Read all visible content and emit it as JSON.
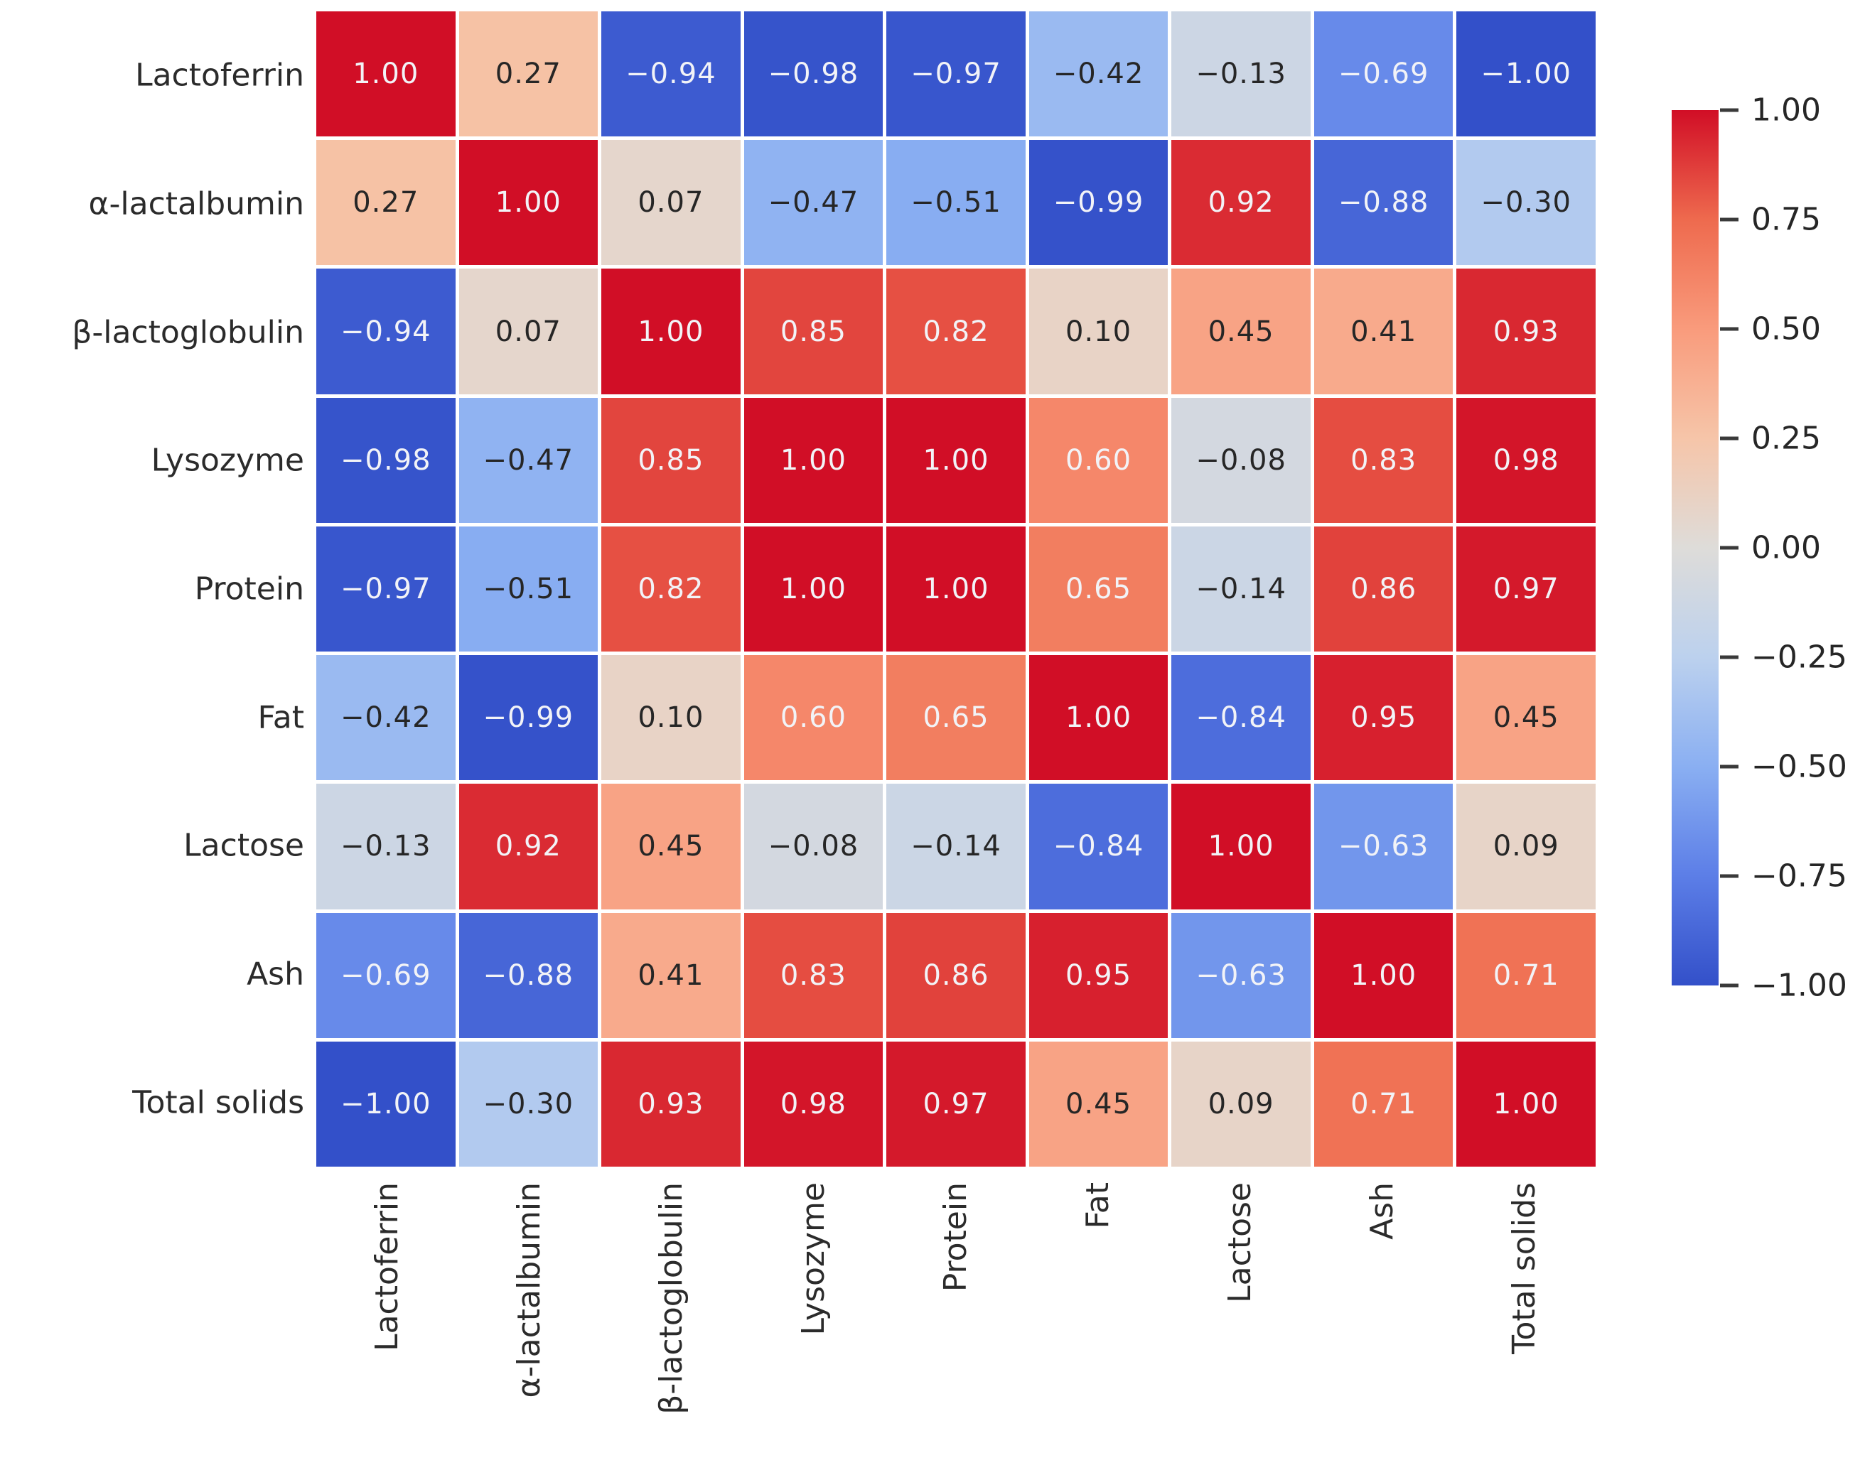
{
  "chart_data": {
    "type": "heatmap",
    "title": "",
    "description": "Correlation matrix heatmap of milk components",
    "categories": [
      "Lactoferrin",
      "α-lactalbumin",
      "β-lactoglobulin",
      "Lysozyme",
      "Protein",
      "Fat",
      "Lactose",
      "Ash",
      "Total solids"
    ],
    "matrix": [
      [
        1.0,
        0.27,
        -0.94,
        -0.98,
        -0.97,
        -0.42,
        -0.13,
        -0.69,
        -1.0
      ],
      [
        0.27,
        1.0,
        0.07,
        -0.47,
        -0.51,
        -0.99,
        0.92,
        -0.88,
        -0.3
      ],
      [
        -0.94,
        0.07,
        1.0,
        0.85,
        0.82,
        0.1,
        0.45,
        0.41,
        0.93
      ],
      [
        -0.98,
        -0.47,
        0.85,
        1.0,
        1.0,
        0.6,
        -0.08,
        0.83,
        0.98
      ],
      [
        -0.97,
        -0.51,
        0.82,
        1.0,
        1.0,
        0.65,
        -0.14,
        0.86,
        0.97
      ],
      [
        -0.42,
        -0.99,
        0.1,
        0.6,
        0.65,
        1.0,
        -0.84,
        0.95,
        0.45
      ],
      [
        -0.13,
        0.92,
        0.45,
        -0.08,
        -0.14,
        -0.84,
        1.0,
        -0.63,
        0.09
      ],
      [
        -0.69,
        -0.88,
        0.41,
        0.83,
        0.86,
        0.95,
        -0.63,
        1.0,
        0.71
      ],
      [
        -1.0,
        -0.3,
        0.93,
        0.98,
        0.97,
        0.45,
        0.09,
        0.71,
        1.0
      ]
    ],
    "value_range": [
      -1.0,
      1.0
    ],
    "annotation_decimals": 2,
    "grid": false,
    "legend_position": "right",
    "colorbar_ticks": [
      {
        "label": "1.00",
        "value": 1.0
      },
      {
        "label": "0.75",
        "value": 0.75
      },
      {
        "label": "0.50",
        "value": 0.5
      },
      {
        "label": "0.25",
        "value": 0.25
      },
      {
        "label": "0.00",
        "value": 0.0
      },
      {
        "label": "−0.25",
        "value": -0.25
      },
      {
        "label": "−0.50",
        "value": -0.5
      },
      {
        "label": "−0.75",
        "value": -0.75
      },
      {
        "label": "−1.00",
        "value": -1.0
      }
    ],
    "colormap_anchors": [
      {
        "t": -1.0,
        "color": "#3350c9"
      },
      {
        "t": -0.75,
        "color": "#5c7ee7"
      },
      {
        "t": -0.5,
        "color": "#8aaff2"
      },
      {
        "t": -0.25,
        "color": "#bcd1ee"
      },
      {
        "t": 0.0,
        "color": "#dedcd9"
      },
      {
        "t": 0.25,
        "color": "#f6c5a9"
      },
      {
        "t": 0.5,
        "color": "#f99b7c"
      },
      {
        "t": 0.75,
        "color": "#ee6a4e"
      },
      {
        "t": 1.0,
        "color": "#d10e26"
      }
    ]
  },
  "colors": {
    "background": "#ffffff",
    "annotation_dark": "#262626",
    "annotation_light": "#f2f3f7",
    "axis_label": "#2b2b2b",
    "tick_mark": "#3a3a3a",
    "positive_extreme": "#d10e26",
    "negative_extreme": "#3350c9"
  },
  "layout_numbers": {
    "luminance_text_threshold": 0.63
  }
}
